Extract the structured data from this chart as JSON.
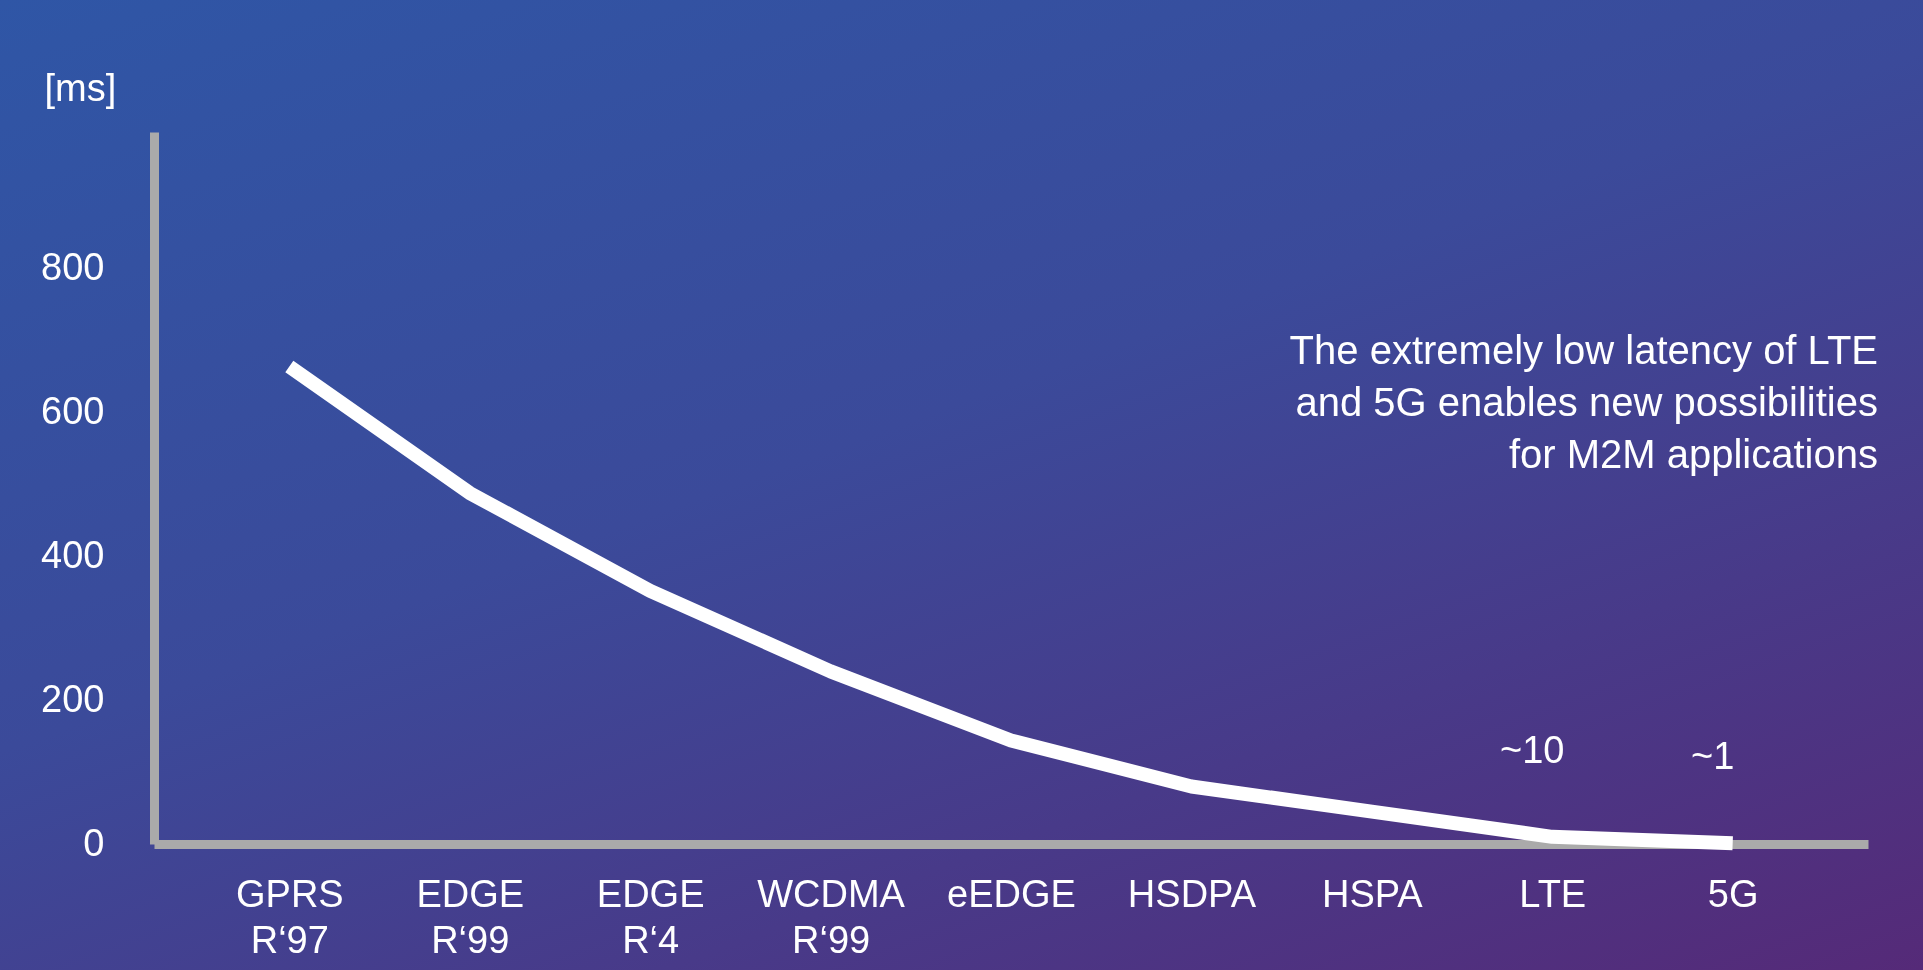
{
  "chart_data": {
    "type": "line",
    "ylabel": "[ms]",
    "categories": [
      "GPRS\nR‘97",
      "EDGE\nR‘99",
      "EDGE\nR‘4",
      "WCDMA\nR‘99",
      "eEDGE",
      "HSDPA",
      "HSPA",
      "LTE",
      "5G"
    ],
    "series": [
      {
        "color": "#ffffff",
        "values": [
          664,
          488,
          352,
          240,
          144,
          80,
          45,
          10,
          1
        ],
        "value_labels": [
          null,
          null,
          null,
          null,
          null,
          null,
          null,
          "~10",
          "~1"
        ]
      }
    ],
    "ylim": [
      0,
      990
    ],
    "yticks": [
      0,
      200,
      400,
      600,
      800
    ],
    "grid": false,
    "line_style": "solid",
    "annotations": [
      "The extremely low latency of LTE\nand 5G enables new possibilities\nfor M2M applications"
    ]
  }
}
